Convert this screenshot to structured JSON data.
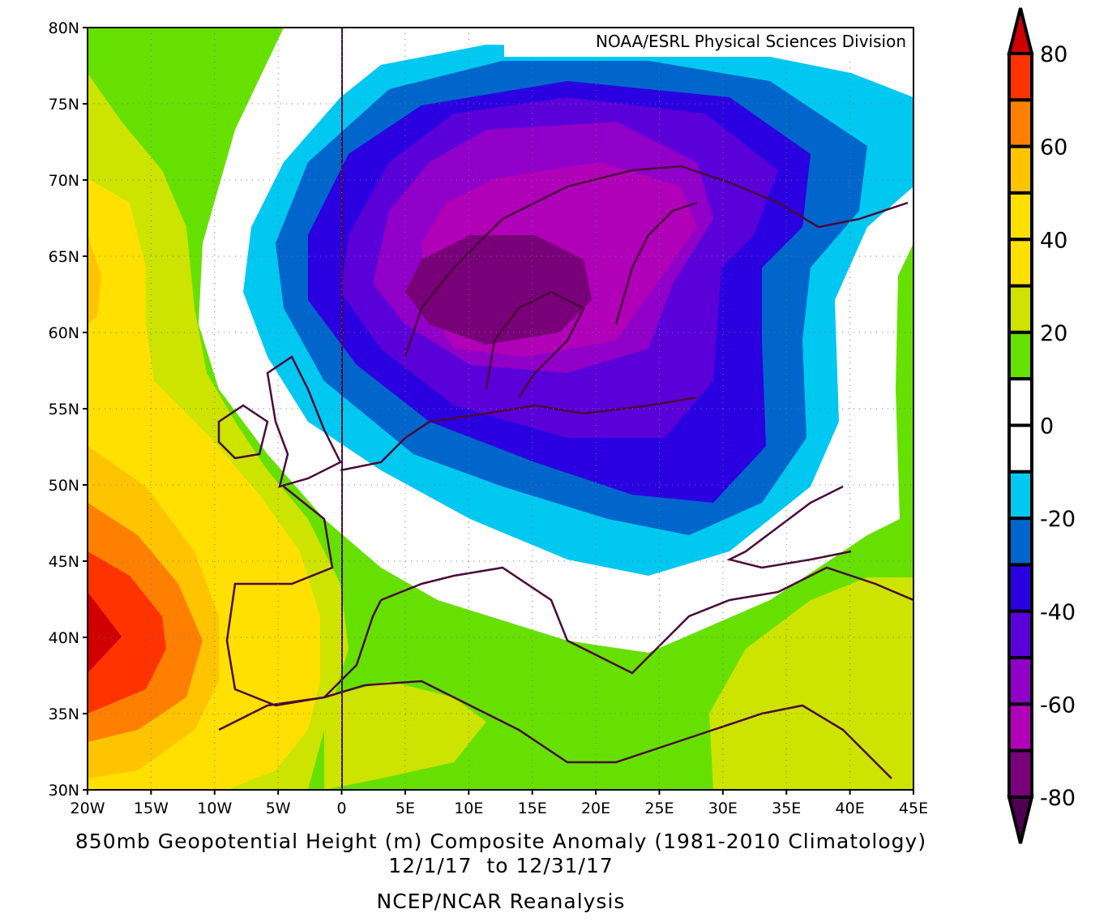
{
  "credit": "NOAA/ESRL Physical Sciences Division",
  "title_line1": "850mb Geopotential Height (m) Composite Anomaly (1981-2010 Climatology)",
  "title_line2": "12/1/17  to 12/31/17",
  "source": "NCEP/NCAR Reanalysis",
  "lat_labels": [
    "80N",
    "75N",
    "70N",
    "65N",
    "60N",
    "55N",
    "50N",
    "45N",
    "40N",
    "35N",
    "30N"
  ],
  "lon_labels": [
    "20W",
    "15W",
    "10W",
    "5W",
    "0",
    "5E",
    "10E",
    "15E",
    "20E",
    "25E",
    "30E",
    "35E",
    "40E",
    "45E"
  ],
  "colorbar": {
    "labels": [
      "80",
      "60",
      "40",
      "20",
      "0",
      "-20",
      "-40",
      "-60",
      "-80"
    ],
    "colors": [
      "#d00000",
      "#ff3300",
      "#ff8000",
      "#ffc400",
      "#ffe000",
      "#ffe000",
      "#cce400",
      "#66e000",
      "#ffffff",
      "#ffffff",
      "#00c8f0",
      "#0066cc",
      "#2a00e0",
      "#5a00d8",
      "#9000c8",
      "#b000b8",
      "#780078",
      "#500050"
    ]
  },
  "colors": {
    "coast": "#4a0a3a"
  }
}
